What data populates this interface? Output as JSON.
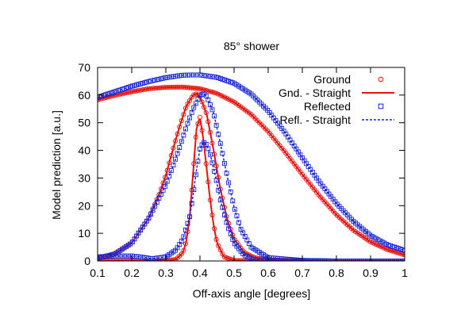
{
  "chart_data": {
    "type": "line",
    "title": "85° shower",
    "xlabel": "Off-axis angle [degrees]",
    "ylabel": "Model prediction [a.u.]",
    "xlim": [
      0.1,
      1.0
    ],
    "ylim": [
      0,
      70
    ],
    "xticks": [
      "0.1",
      "0.2",
      "0.3",
      "0.4",
      "0.5",
      "0.6",
      "0.7",
      "0.8",
      "0.9",
      "1"
    ],
    "yticks": [
      "0",
      "10",
      "20",
      "30",
      "40",
      "50",
      "60",
      "70"
    ],
    "grid": false,
    "legend_position": "top-right",
    "colors": {
      "ground": "#e8120c",
      "reflected": "#1524d6"
    },
    "legend": [
      {
        "label": "Ground",
        "style": "circle-markers",
        "color": "#e8120c"
      },
      {
        "label": "Gnd. - Straight",
        "style": "solid-line",
        "color": "#e8120c"
      },
      {
        "label": "Reflected",
        "style": "square-markers",
        "color": "#1524d6"
      },
      {
        "label": "Refl. - Straight",
        "style": "dashed-line",
        "color": "#1524d6"
      }
    ],
    "series": [
      {
        "group": "ground",
        "x": [
          0.1,
          0.15,
          0.2,
          0.25,
          0.3,
          0.35,
          0.4,
          0.45,
          0.5,
          0.55,
          0.6,
          0.65,
          0.7,
          0.75,
          0.8,
          0.85,
          0.9,
          0.95,
          1.0
        ],
        "values": [
          58.3,
          59.9,
          61.2,
          62.3,
          62.8,
          62.9,
          62.3,
          60.6,
          57.5,
          53.0,
          46.8,
          39.3,
          31.3,
          23.6,
          16.7,
          11.1,
          6.9,
          4.1,
          2.2
        ]
      },
      {
        "group": "ground",
        "x": [
          0.1,
          0.15,
          0.2,
          0.25,
          0.28,
          0.3,
          0.32,
          0.34,
          0.36,
          0.38,
          0.39,
          0.4,
          0.42,
          0.44,
          0.46,
          0.48,
          0.5,
          0.53,
          0.56,
          0.6,
          0.7,
          0.8,
          1.0
        ],
        "values": [
          1.0,
          2.5,
          6.5,
          15.5,
          24.0,
          31.0,
          40.0,
          48.5,
          56.0,
          60.0,
          60.5,
          59.5,
          53.0,
          40.0,
          26.0,
          15.0,
          8.0,
          3.0,
          1.2,
          0.4,
          0.1,
          0.0,
          0.0
        ]
      },
      {
        "group": "ground",
        "x": [
          0.1,
          0.2,
          0.3,
          0.33,
          0.35,
          0.36,
          0.37,
          0.38,
          0.39,
          0.4,
          0.41,
          0.42,
          0.43,
          0.44,
          0.45,
          0.47,
          0.5,
          0.55,
          0.6,
          0.7,
          0.8,
          1.0
        ],
        "values": [
          0.0,
          0.0,
          0.1,
          0.6,
          3.0,
          7.0,
          16.0,
          32.0,
          48.0,
          52.0,
          44.0,
          33.0,
          22.0,
          13.0,
          6.5,
          1.5,
          0.2,
          0.0,
          0.0,
          0.0,
          0.0,
          0.0
        ]
      },
      {
        "group": "reflected",
        "x": [
          0.1,
          0.15,
          0.2,
          0.25,
          0.3,
          0.35,
          0.4,
          0.45,
          0.5,
          0.55,
          0.6,
          0.65,
          0.7,
          0.75,
          0.8,
          0.85,
          0.9,
          0.95,
          1.0
        ],
        "values": [
          59.2,
          61.2,
          63.2,
          64.9,
          66.3,
          67.2,
          67.3,
          66.4,
          64.3,
          60.4,
          54.3,
          46.3,
          37.3,
          28.6,
          20.8,
          14.3,
          9.2,
          5.8,
          3.8
        ]
      },
      {
        "group": "reflected",
        "x": [
          0.1,
          0.15,
          0.2,
          0.25,
          0.3,
          0.32,
          0.34,
          0.36,
          0.38,
          0.4,
          0.41,
          0.42,
          0.44,
          0.46,
          0.48,
          0.5,
          0.52,
          0.55,
          0.6,
          0.7,
          0.8,
          1.0
        ],
        "values": [
          1.0,
          2.5,
          6.5,
          15.5,
          27.5,
          34.0,
          41.0,
          48.5,
          55.0,
          60.0,
          60.5,
          59.5,
          53.5,
          42.5,
          30.5,
          19.5,
          11.5,
          5.0,
          1.2,
          0.2,
          0.0,
          0.0
        ]
      },
      {
        "group": "reflected",
        "x": [
          0.1,
          0.15,
          0.2,
          0.23,
          0.26,
          0.3,
          0.33,
          0.35,
          0.37,
          0.38,
          0.39,
          0.4,
          0.41,
          0.42,
          0.43,
          0.44,
          0.45,
          0.46,
          0.48,
          0.5,
          0.53,
          0.56,
          0.6,
          0.7,
          0.8,
          1.0
        ],
        "values": [
          1.5,
          1.8,
          1.8,
          1.4,
          0.8,
          1.5,
          4.0,
          8.0,
          16.0,
          24.0,
          33.0,
          40.5,
          43.0,
          42.0,
          38.5,
          33.5,
          28.0,
          22.0,
          13.0,
          6.5,
          2.0,
          0.5,
          0.1,
          0.0,
          0.0,
          0.0
        ]
      }
    ]
  }
}
